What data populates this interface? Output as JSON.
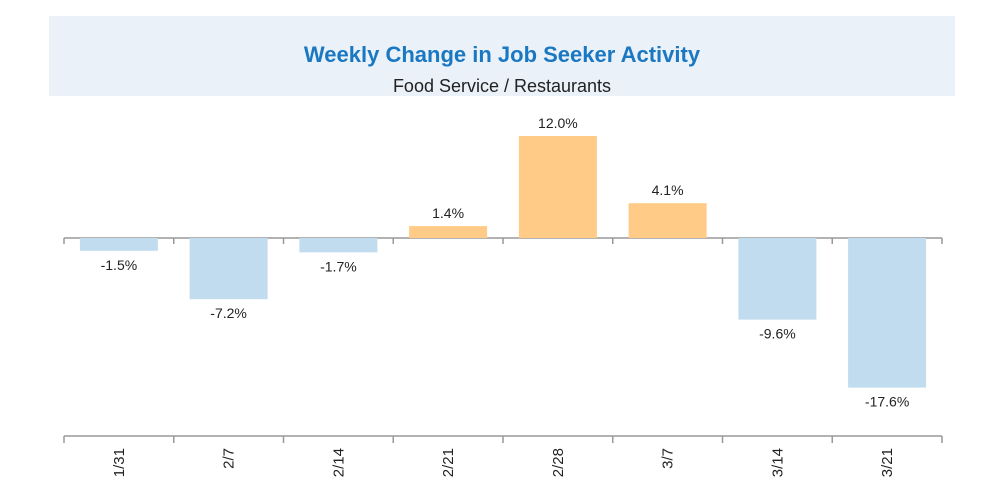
{
  "colors": {
    "positive": "#ffcb86",
    "negative": "#c0dcee",
    "title": "#1a78c2",
    "axis": "#999999",
    "title_background": "#eaf1f8"
  },
  "chart_data": {
    "type": "bar",
    "title": "Weekly Change in Job Seeker Activity",
    "subtitle": "Food Service / Restaurants",
    "categories": [
      "1/31",
      "2/7",
      "2/14",
      "2/21",
      "2/28",
      "3/7",
      "3/14",
      "3/21"
    ],
    "values": [
      -1.5,
      -7.2,
      -1.7,
      1.4,
      12.0,
      4.1,
      -9.6,
      -17.6
    ],
    "data_labels": [
      "-1.5%",
      "-7.2%",
      "-1.7%",
      "1.4%",
      "12.0%",
      "4.1%",
      "-9.6%",
      "-17.6%"
    ],
    "unit": "%",
    "xlabel": "",
    "ylabel": "",
    "grid": false,
    "y_axis_visible": false
  }
}
